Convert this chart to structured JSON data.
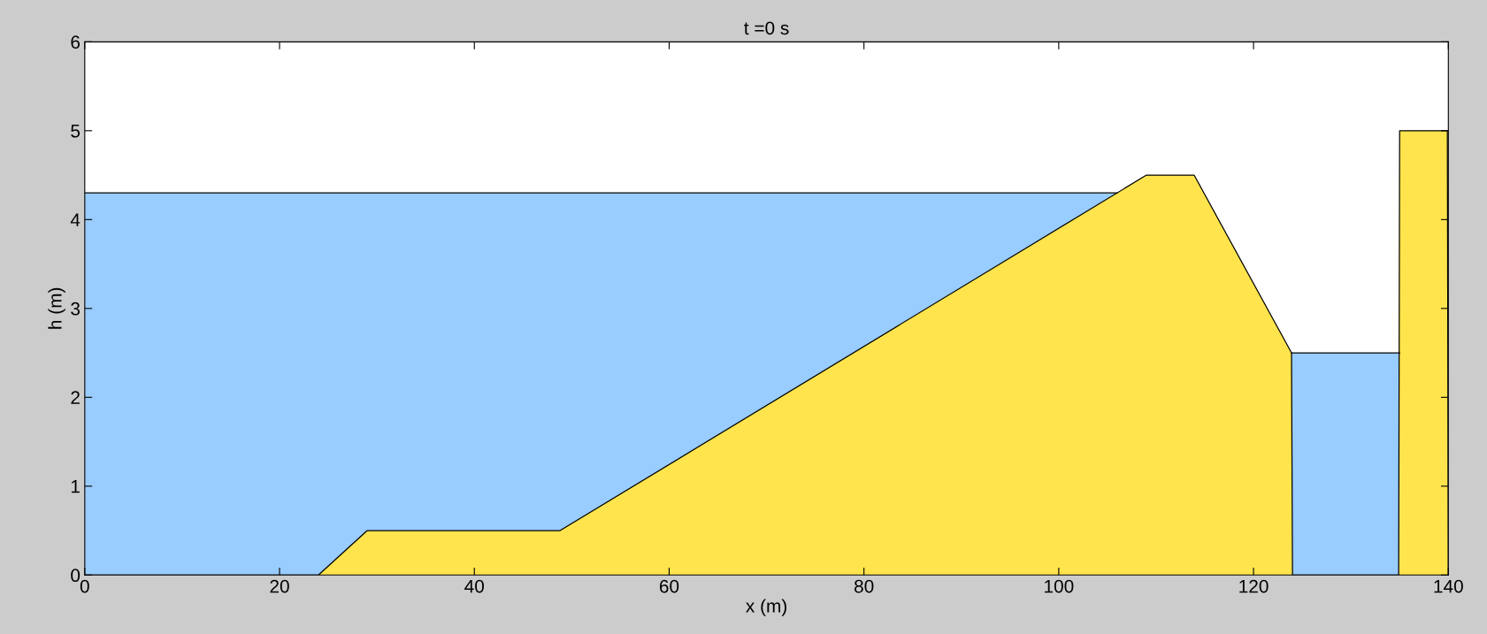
{
  "chart_data": {
    "type": "area",
    "title": "t =0 s",
    "xlabel": "x (m)",
    "ylabel": "h (m)",
    "xlim": [
      0,
      140
    ],
    "ylim": [
      0,
      6
    ],
    "xticks": [
      0,
      20,
      40,
      60,
      80,
      100,
      120,
      140
    ],
    "yticks": [
      0,
      1,
      2,
      3,
      4,
      5,
      6
    ],
    "grid": false,
    "series": [
      {
        "color": "#99ccff",
        "x": [
          0,
          106
        ],
        "values": [
          4.3,
          4.3
        ]
      },
      {
        "color": "#99ccff",
        "x": [
          123.9,
          135
        ],
        "values": [
          2.5,
          2.5
        ]
      },
      {
        "color": "#ffe44d",
        "x": [
          0,
          24,
          29,
          48.8,
          109,
          113.9,
          123.9,
          124,
          124.1,
          134.9,
          135,
          135.1,
          139.9,
          140
        ],
        "values": [
          0,
          0,
          0.5,
          0.5,
          4.5,
          4.5,
          2.5,
          0,
          0,
          0,
          5,
          5,
          5,
          0
        ]
      }
    ]
  }
}
